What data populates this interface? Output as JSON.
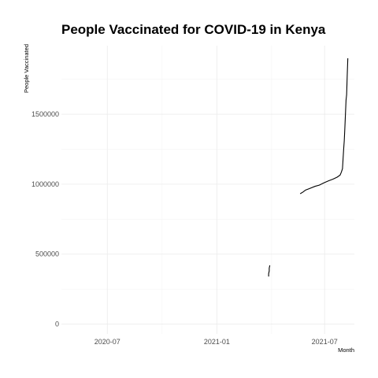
{
  "chart_data": {
    "type": "line",
    "title": "People Vaccinated for COVID-19 in Kenya",
    "xlabel": "Month",
    "ylabel": "People Vaccinated",
    "x_tick_labels": [
      "2020-07",
      "2021-01",
      "2021-07"
    ],
    "y_tick_labels": [
      "0",
      "500000",
      "1000000",
      "1500000"
    ],
    "xlim": [
      "2020-04-15",
      "2021-08-20"
    ],
    "ylim": [
      -70000,
      1990000
    ],
    "grid": true,
    "legend": "none",
    "series": [
      {
        "values": [
          {
            "x": "2021-03-29",
            "y": 340000
          },
          {
            "x": "2021-03-29",
            "y": 360000
          },
          {
            "x": "2021-03-30",
            "y": 380000
          },
          {
            "x": "2021-03-30",
            "y": 400000
          },
          {
            "x": "2021-03-31",
            "y": 420000
          },
          {
            "x": "2021-05-21",
            "y": 932000
          },
          {
            "x": "2021-05-26",
            "y": 945000
          },
          {
            "x": "2021-05-30",
            "y": 958000
          },
          {
            "x": "2021-06-05",
            "y": 968000
          },
          {
            "x": "2021-06-15",
            "y": 985000
          },
          {
            "x": "2021-06-22",
            "y": 993000
          },
          {
            "x": "2021-06-30",
            "y": 1010000
          },
          {
            "x": "2021-07-08",
            "y": 1025000
          },
          {
            "x": "2021-07-15",
            "y": 1036000
          },
          {
            "x": "2021-07-22",
            "y": 1050000
          },
          {
            "x": "2021-07-27",
            "y": 1065000
          },
          {
            "x": "2021-07-29",
            "y": 1085000
          },
          {
            "x": "2021-07-31",
            "y": 1110000
          },
          {
            "x": "2021-08-01",
            "y": 1180000
          },
          {
            "x": "2021-08-02",
            "y": 1250000
          },
          {
            "x": "2021-08-03",
            "y": 1310000
          },
          {
            "x": "2021-08-04",
            "y": 1400000
          },
          {
            "x": "2021-08-05",
            "y": 1500000
          },
          {
            "x": "2021-08-06",
            "y": 1600000
          },
          {
            "x": "2021-08-07",
            "y": 1640000
          },
          {
            "x": "2021-08-08",
            "y": 1780000
          },
          {
            "x": "2021-08-09",
            "y": 1900000
          }
        ]
      }
    ]
  },
  "colors": {
    "line": "#000000",
    "grid": "#ebebeb",
    "tick_text": "#4d4d4d",
    "background": "#ffffff"
  }
}
